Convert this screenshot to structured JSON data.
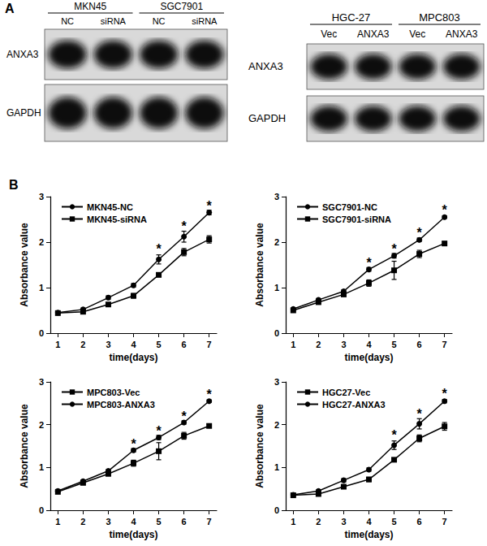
{
  "panel_labels": [
    "A",
    "B"
  ],
  "blots": [
    {
      "groups": [
        {
          "label": "MKN45",
          "lanes": [
            "NC",
            "siRNA"
          ]
        },
        {
          "label": "SGC7901",
          "lanes": [
            "NC",
            "siRNA"
          ]
        }
      ],
      "rows": [
        "ANXA3",
        "GAPDH"
      ]
    },
    {
      "groups": [
        {
          "label": "HGC-27",
          "lanes": [
            "Vec",
            "ANXA3"
          ]
        },
        {
          "label": "MPC803",
          "lanes": [
            "Vec",
            "ANXA3"
          ]
        }
      ],
      "rows": [
        "ANXA3",
        "GAPDH"
      ]
    }
  ],
  "chart_data": [
    {
      "type": "line",
      "xlabel": "time(days)",
      "ylabel": "Absorbance value",
      "xlim": [
        0.7,
        7.3
      ],
      "xticks": [
        1,
        2,
        3,
        4,
        5,
        6,
        7
      ],
      "ylim": [
        0,
        3
      ],
      "yticks": [
        0,
        1,
        2,
        3
      ],
      "legend": "upper left",
      "x": [
        1,
        2,
        3,
        4,
        5,
        6,
        7
      ],
      "series": [
        {
          "name": "MKN45-NC",
          "color": "#000000",
          "marker": "circle",
          "values": [
            0.45,
            0.52,
            0.78,
            1.05,
            1.62,
            2.12,
            2.65
          ],
          "errors": [
            0.02,
            0.03,
            0.04,
            0.04,
            0.1,
            0.12,
            0.05
          ]
        },
        {
          "name": "MKN45-siRNA",
          "color": "#000000",
          "marker": "square",
          "values": [
            0.44,
            0.47,
            0.63,
            0.82,
            1.28,
            1.78,
            2.06
          ],
          "errors": [
            0.02,
            0.02,
            0.03,
            0.05,
            0.04,
            0.08,
            0.08
          ]
        }
      ],
      "annotations": [
        {
          "text": "*",
          "x": 5,
          "y": 1.85
        },
        {
          "text": "*",
          "x": 6,
          "y": 2.35
        },
        {
          "text": "*",
          "x": 7,
          "y": 2.8
        }
      ]
    },
    {
      "type": "line",
      "xlabel": "time(days)",
      "ylabel": "Absorbance value",
      "xlim": [
        0.7,
        7.3
      ],
      "xticks": [
        1,
        2,
        3,
        4,
        5,
        6,
        7
      ],
      "ylim": [
        0,
        3
      ],
      "yticks": [
        0,
        1,
        2,
        3
      ],
      "legend": "upper left",
      "x": [
        1,
        2,
        3,
        4,
        5,
        6,
        7
      ],
      "series": [
        {
          "name": "SGC7901-NC",
          "color": "#000000",
          "marker": "circle",
          "values": [
            0.53,
            0.73,
            0.92,
            1.4,
            1.7,
            2.05,
            2.55
          ],
          "errors": [
            0.02,
            0.03,
            0.03,
            0.04,
            0.05,
            0.04,
            0.03
          ]
        },
        {
          "name": "SGC7901-siRNA",
          "color": "#000000",
          "marker": "square",
          "values": [
            0.5,
            0.68,
            0.85,
            1.1,
            1.38,
            1.74,
            1.97
          ],
          "errors": [
            0.02,
            0.03,
            0.03,
            0.07,
            0.2,
            0.08,
            0.04
          ]
        }
      ],
      "annotations": [
        {
          "text": "*",
          "x": 4,
          "y": 1.55
        },
        {
          "text": "*",
          "x": 5,
          "y": 1.85
        },
        {
          "text": "*",
          "x": 6,
          "y": 2.2
        },
        {
          "text": "*",
          "x": 7,
          "y": 2.7
        }
      ]
    },
    {
      "type": "line",
      "xlabel": "time(days)",
      "ylabel": "Absorbance value",
      "xlim": [
        0.7,
        7.3
      ],
      "xticks": [
        1,
        2,
        3,
        4,
        5,
        6,
        7
      ],
      "ylim": [
        0,
        3
      ],
      "yticks": [
        0,
        1,
        2,
        3
      ],
      "legend": "upper left",
      "x": [
        1,
        2,
        3,
        4,
        5,
        6,
        7
      ],
      "series": [
        {
          "name": "MPC803-Vec",
          "color": "#000000",
          "marker": "square",
          "values": [
            0.43,
            0.64,
            0.85,
            1.1,
            1.38,
            1.74,
            1.97
          ],
          "errors": [
            0.02,
            0.03,
            0.03,
            0.07,
            0.2,
            0.08,
            0.04
          ]
        },
        {
          "name": "MPC803-ANXA3",
          "color": "#000000",
          "marker": "circle",
          "values": [
            0.45,
            0.68,
            0.92,
            1.4,
            1.7,
            2.05,
            2.55
          ],
          "errors": [
            0.02,
            0.03,
            0.03,
            0.04,
            0.05,
            0.04,
            0.03
          ]
        }
      ],
      "annotations": [
        {
          "text": "*",
          "x": 4,
          "y": 1.55
        },
        {
          "text": "*",
          "x": 5,
          "y": 1.85
        },
        {
          "text": "*",
          "x": 6,
          "y": 2.2
        },
        {
          "text": "*",
          "x": 7,
          "y": 2.7
        }
      ]
    },
    {
      "type": "line",
      "xlabel": "time(days)",
      "ylabel": "Absorbance value",
      "xlim": [
        0.7,
        7.3
      ],
      "xticks": [
        1,
        2,
        3,
        4,
        5,
        6,
        7
      ],
      "ylim": [
        0,
        3
      ],
      "yticks": [
        0,
        1,
        2,
        3
      ],
      "legend": "upper left",
      "x": [
        1,
        2,
        3,
        4,
        5,
        6,
        7
      ],
      "series": [
        {
          "name": "HGC27-Vec",
          "color": "#000000",
          "marker": "square",
          "values": [
            0.35,
            0.38,
            0.55,
            0.72,
            1.18,
            1.68,
            1.96
          ],
          "errors": [
            0.02,
            0.02,
            0.03,
            0.05,
            0.04,
            0.08,
            0.09
          ]
        },
        {
          "name": "HGC27-ANXA3",
          "color": "#000000",
          "marker": "circle",
          "values": [
            0.36,
            0.45,
            0.7,
            0.95,
            1.52,
            2.02,
            2.55
          ],
          "errors": [
            0.02,
            0.03,
            0.04,
            0.04,
            0.1,
            0.12,
            0.04
          ]
        }
      ],
      "annotations": [
        {
          "text": "*",
          "x": 5,
          "y": 1.75
        },
        {
          "text": "*",
          "x": 6,
          "y": 2.25
        },
        {
          "text": "*",
          "x": 7,
          "y": 2.72
        }
      ]
    }
  ]
}
